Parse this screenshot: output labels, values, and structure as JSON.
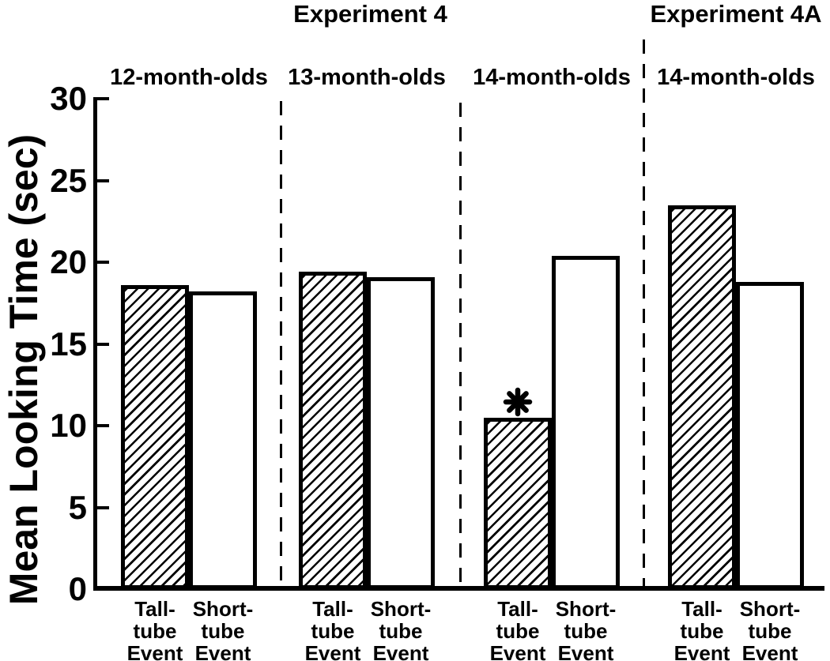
{
  "colors": {
    "ink": "#000000",
    "paper": "#ffffff"
  },
  "chart_data": {
    "type": "bar",
    "ylabel": "Mean Looking Time (sec)",
    "xlabel": "",
    "ylim": [
      0,
      30
    ],
    "yticks": [
      0,
      5,
      10,
      15,
      20,
      25,
      30
    ],
    "grid": "off",
    "legend": "none",
    "bar_fill_key": {
      "hatched": "Tall-tube Event",
      "white": "Short-tube Event"
    },
    "experiments": [
      {
        "title": "Experiment 4",
        "groups": [
          {
            "label": "12-month-olds",
            "bars": [
              {
                "label": "Tall-tube Event",
                "label_lines": [
                  "Tall-",
                  "tube",
                  "Event"
                ],
                "value": 18.6,
                "fill": "hatched",
                "annotation": ""
              },
              {
                "label": "Short-tube Event",
                "label_lines": [
                  "Short-",
                  "tube",
                  "Event"
                ],
                "value": 18.2,
                "fill": "white",
                "annotation": ""
              }
            ]
          },
          {
            "label": "13-month-olds",
            "bars": [
              {
                "label": "Tall-tube Event",
                "label_lines": [
                  "Tall-",
                  "tube",
                  "Event"
                ],
                "value": 19.4,
                "fill": "hatched",
                "annotation": ""
              },
              {
                "label": "Short-tube Event",
                "label_lines": [
                  "Short-",
                  "tube",
                  "Event"
                ],
                "value": 19.1,
                "fill": "white",
                "annotation": ""
              }
            ]
          },
          {
            "label": "14-month-olds",
            "bars": [
              {
                "label": "Tall-tube Event",
                "label_lines": [
                  "Tall-",
                  "tube",
                  "Event"
                ],
                "value": 10.5,
                "fill": "hatched",
                "annotation": "*"
              },
              {
                "label": "Short-tube Event",
                "label_lines": [
                  "Short-",
                  "tube",
                  "Event"
                ],
                "value": 20.4,
                "fill": "white",
                "annotation": ""
              }
            ]
          }
        ]
      },
      {
        "title": "Experiment 4A",
        "groups": [
          {
            "label": "14-month-olds",
            "bars": [
              {
                "label": "Tall-tube Event",
                "label_lines": [
                  "Tall-",
                  "tube",
                  "Event"
                ],
                "value": 23.5,
                "fill": "hatched",
                "annotation": ""
              },
              {
                "label": "Short-tube Event",
                "label_lines": [
                  "Short-",
                  "tube",
                  "Event"
                ],
                "value": 18.8,
                "fill": "white",
                "annotation": ""
              }
            ]
          }
        ]
      }
    ]
  }
}
